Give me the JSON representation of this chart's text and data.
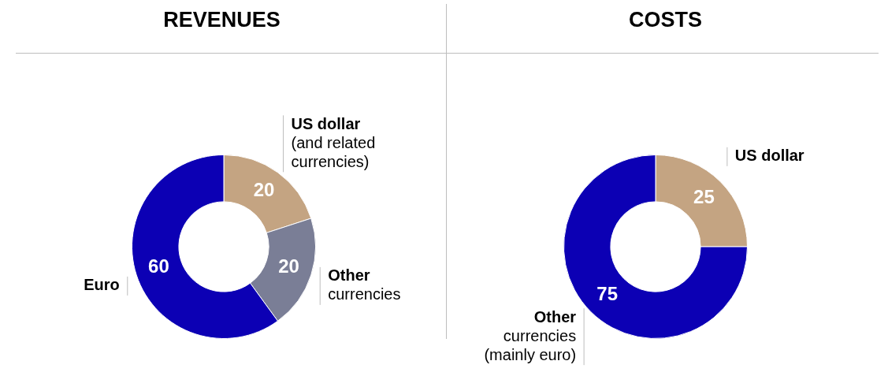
{
  "chart_data": [
    {
      "type": "donut",
      "title": "REVENUES",
      "categories": [
        "US dollar\n(and related\ncurrencies)",
        "Other\ncurrencies",
        "Euro"
      ],
      "values": [
        20,
        20,
        60
      ],
      "colors": [
        "#c4a482",
        "#7a7e96",
        "#0c00b4"
      ],
      "data_labels": true
    },
    {
      "type": "donut",
      "title": "COSTS",
      "categories": [
        "US dollar",
        "Other\ncurrencies\n(mainly euro)"
      ],
      "values": [
        25,
        75
      ],
      "colors": [
        "#c4a482",
        "#0c00b4"
      ],
      "data_labels": true
    }
  ]
}
